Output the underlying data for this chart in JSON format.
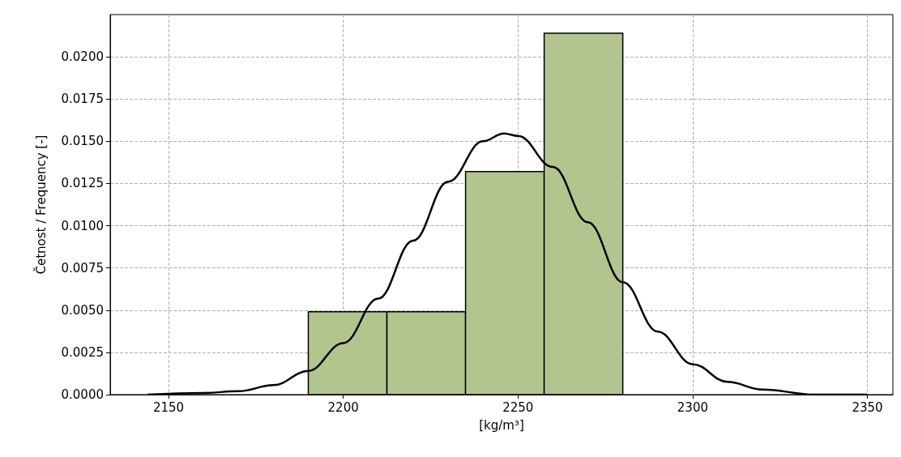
{
  "chart_data": {
    "type": "histogram",
    "xlabel": "[kg/m³]",
    "ylabel": "Četnost / Frequency [-]",
    "xlim": [
      2133.3,
      2357.3
    ],
    "xticks": [
      2150,
      2200,
      2250,
      2300,
      2350
    ],
    "ylim": [
      0,
      0.0225
    ],
    "yticks": [
      {
        "value": 0,
        "label": "0.0000"
      },
      {
        "value": 0.0025,
        "label": "0.0025"
      },
      {
        "value": 0.005,
        "label": "0.0050"
      },
      {
        "value": 0.0075,
        "label": "0.0075"
      },
      {
        "value": 0.01,
        "label": "0.0100"
      },
      {
        "value": 0.0125,
        "label": "0.0125"
      },
      {
        "value": 0.015,
        "label": "0.0150"
      },
      {
        "value": 0.0175,
        "label": "0.0175"
      },
      {
        "value": 0.02,
        "label": "0.0200"
      }
    ],
    "grid": true,
    "series": [
      {
        "color": "#b3c58f",
        "bins": [
          2190,
          2212.5,
          2235,
          2257.5,
          2280
        ],
        "values": [
          0.0049,
          0.0049,
          0.0132,
          0.0214
        ]
      },
      {
        "type": "line",
        "color": "#000000",
        "line_style": "solid",
        "marker": "none",
        "x": [
          2144,
          2160,
          2170,
          2180,
          2190,
          2200,
          2210,
          2220,
          2230,
          2240,
          2246,
          2250,
          2260,
          2270,
          2280,
          2290,
          2300,
          2310,
          2320,
          2335,
          2350
        ],
        "values": [
          0,
          0.0001,
          0.0002,
          0.00056,
          0.0014,
          0.00305,
          0.00568,
          0.00912,
          0.0126,
          0.015,
          0.01546,
          0.01532,
          0.01348,
          0.01021,
          0.00666,
          0.00373,
          0.0018,
          0.00075,
          0.0003,
          0,
          0
        ]
      }
    ]
  }
}
